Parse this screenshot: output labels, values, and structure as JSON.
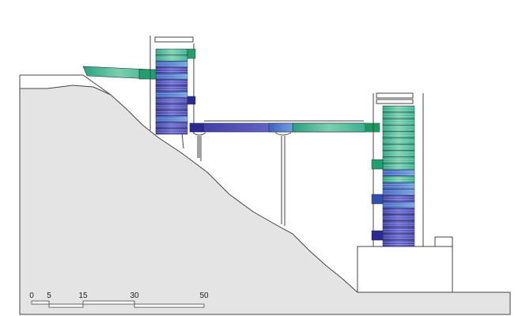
{
  "scale_bar": {
    "labels": [
      "0",
      "5",
      "15",
      "30",
      "50"
    ]
  }
}
